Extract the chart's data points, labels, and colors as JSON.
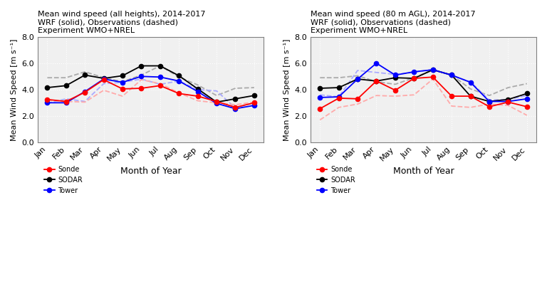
{
  "months": [
    "Jan",
    "Feb",
    "Mar",
    "Apr",
    "May",
    "Jun",
    "Jul",
    "Aug",
    "Sep",
    "Oct",
    "Nov",
    "Dec"
  ],
  "panel1_title": "Mean wind speed (all heights), 2014-2017\nWRF (solid), Observations (dashed)\nExperiment WMO+NREL",
  "panel2_title": "Mean wind speed (80 m AGL), 2014-2017\nWRF (solid), Observations (dashed)\nExperiment WMO+NREL",
  "p1_sodar_wrf": [
    4.15,
    4.3,
    5.1,
    4.85,
    5.05,
    5.8,
    5.8,
    5.05,
    4.05,
    3.05,
    3.3,
    3.55
  ],
  "p1_sodar_obs": [
    4.9,
    4.9,
    5.35,
    4.9,
    4.6,
    5.1,
    5.8,
    4.95,
    4.35,
    3.55,
    4.1,
    4.15
  ],
  "p1_tower_wrf": [
    3.0,
    3.0,
    3.85,
    4.8,
    4.55,
    5.0,
    4.95,
    4.65,
    3.85,
    2.95,
    2.55,
    2.8
  ],
  "p1_tower_obs": [
    2.95,
    3.3,
    3.1,
    4.45,
    4.55,
    4.8,
    4.4,
    4.65,
    4.0,
    3.9,
    2.6,
    3.0
  ],
  "p1_sonde_wrf": [
    3.25,
    3.1,
    3.8,
    4.75,
    4.05,
    4.1,
    4.3,
    3.7,
    3.5,
    3.1,
    2.65,
    3.0
  ],
  "p1_sonde_obs": [
    3.2,
    3.1,
    3.05,
    3.95,
    3.5,
    4.75,
    4.45,
    3.75,
    3.15,
    3.0,
    2.85,
    3.05
  ],
  "p2_sodar_wrf": [
    4.1,
    4.15,
    4.8,
    4.65,
    4.9,
    4.85,
    5.5,
    5.1,
    3.5,
    3.1,
    3.25,
    3.7
  ],
  "p2_sodar_obs": [
    4.9,
    4.9,
    5.05,
    4.6,
    4.4,
    4.9,
    5.5,
    5.1,
    4.05,
    3.55,
    4.15,
    4.45
  ],
  "p2_tower_wrf": [
    3.4,
    3.45,
    4.8,
    6.0,
    5.1,
    5.35,
    5.5,
    5.1,
    4.55,
    3.1,
    3.1,
    3.3
  ],
  "p2_tower_obs": [
    3.6,
    3.45,
    5.45,
    5.3,
    5.15,
    5.3,
    5.55,
    5.05,
    4.6,
    3.2,
    3.25,
    3.55
  ],
  "p2_sonde_wrf": [
    2.55,
    3.35,
    3.3,
    4.65,
    3.95,
    4.85,
    4.95,
    3.5,
    3.5,
    2.7,
    3.05,
    2.7
  ],
  "p2_sonde_obs": [
    1.7,
    2.65,
    2.9,
    3.55,
    3.5,
    3.6,
    4.8,
    2.75,
    2.65,
    2.9,
    2.8,
    2.05
  ],
  "ylim": [
    0.0,
    8.0
  ],
  "yticks": [
    0.0,
    2.0,
    4.0,
    6.0,
    8.0
  ],
  "color_sonde": "#ff0000",
  "color_sodar": "#000000",
  "color_tower": "#0000ff",
  "color_sonde_obs": "#ffaaaa",
  "color_sodar_obs": "#aaaaaa",
  "color_tower_obs": "#aaaaff",
  "ylabel": "Mean Wind Speed [m s⁻¹]",
  "xlabel": "Month of Year",
  "legend_labels": [
    "Sonde",
    "SODAR",
    "Tower"
  ]
}
